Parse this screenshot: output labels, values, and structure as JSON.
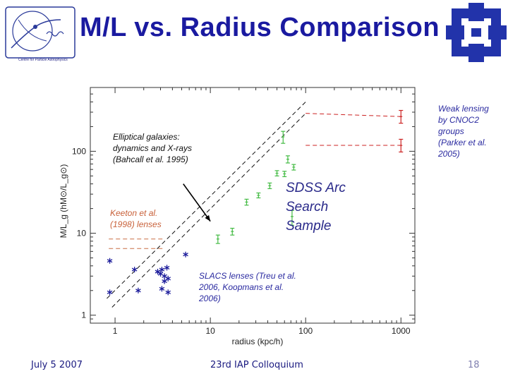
{
  "slide": {
    "title": "M/L vs. Radius Comparison",
    "footer_date": "July 5 2007",
    "footer_conference": "23rd IAP Colloquium",
    "footer_page": "18",
    "logo_left_caption": "Centre for Particle Astrophysics"
  },
  "chart_data": {
    "type": "scatter",
    "xlabel": "radius (kpc/h)",
    "ylabel": "M/L_g (hM⊙/L_g⊙)",
    "xscale": "log",
    "yscale": "log",
    "xlim": [
      0.55,
      1400
    ],
    "ylim": [
      0.8,
      600
    ],
    "xticks": [
      1,
      10,
      100,
      1000
    ],
    "xtick_labels": [
      "1",
      "10",
      "100",
      "1000"
    ],
    "yticks": [
      1,
      10,
      100
    ],
    "ytick_labels": [
      "1",
      "10",
      "100"
    ],
    "series": [
      {
        "name": "SLACS lenses (Treu et al. 2006, Koopmans et al. 2006)",
        "marker": "asterisk",
        "color": "#1a1a9a",
        "points": [
          [
            0.88,
            4.6
          ],
          [
            0.88,
            1.9
          ],
          [
            1.6,
            3.6
          ],
          [
            1.75,
            2.0
          ],
          [
            2.8,
            3.4
          ],
          [
            3.0,
            3.2
          ],
          [
            3.1,
            3.6
          ],
          [
            3.3,
            3.0
          ],
          [
            3.5,
            3.8
          ],
          [
            3.3,
            2.6
          ],
          [
            3.6,
            2.8
          ],
          [
            3.1,
            2.1
          ],
          [
            3.6,
            1.9
          ],
          [
            5.5,
            5.5
          ]
        ]
      },
      {
        "name": "SDSS Arc Search Sample",
        "marker": "errorbar",
        "color": "#44bb44",
        "points": [
          [
            12,
            8.5,
            7.5,
            9.5
          ],
          [
            17,
            10.5,
            9.5,
            11.5
          ],
          [
            24,
            24,
            22,
            26
          ],
          [
            32,
            29,
            27,
            31
          ],
          [
            42,
            38,
            35,
            41
          ],
          [
            50,
            54,
            50,
            58
          ],
          [
            60,
            53,
            49,
            57
          ],
          [
            65,
            80,
            72,
            88
          ],
          [
            72,
            16,
            12.5,
            19
          ],
          [
            75,
            64,
            59,
            69
          ],
          [
            58,
            150,
            125,
            175
          ]
        ]
      },
      {
        "name": "Weak lensing by CNOC2 groups (Parker et al. 2005)",
        "marker": "errorbar",
        "color": "#cc2222",
        "points": [
          [
            1000,
            265,
            220,
            315
          ],
          [
            1000,
            118,
            98,
            140
          ]
        ]
      }
    ],
    "lines": [
      {
        "style": "dashed",
        "color": "#111111",
        "points": [
          [
            0.93,
            1.25
          ],
          [
            100,
            290
          ]
        ]
      },
      {
        "style": "dashed",
        "color": "#111111",
        "points": [
          [
            0.82,
            1.6
          ],
          [
            100,
            400
          ]
        ]
      },
      {
        "style": "dashed",
        "color": "#cc2222",
        "points": [
          [
            100,
            290
          ],
          [
            1000,
            265
          ]
        ]
      },
      {
        "style": "dashed",
        "color": "#cc2222",
        "points": [
          [
            100,
            118
          ],
          [
            1000,
            118
          ]
        ]
      },
      {
        "style": "dashed",
        "color": "#c86e44",
        "points": [
          [
            0.86,
            8.5
          ],
          [
            3.3,
            8.5
          ]
        ]
      },
      {
        "style": "dashed",
        "color": "#c86e44",
        "points": [
          [
            0.86,
            6.5
          ],
          [
            3.3,
            6.5
          ]
        ]
      }
    ],
    "annotations": [
      {
        "text": "Elliptical galaxies: dynamics and X-rays (Bahcall et al. 1995)",
        "color": "#111111"
      },
      {
        "text": "Keeton et al. (1998) lenses",
        "color": "#c8613a"
      },
      {
        "text": "SDSS Arc Search Sample",
        "color": "#2a2a8a"
      },
      {
        "text": "SLACS lenses (Treu et al. 2006, Koopmans et al. 2006)",
        "color": "#2a2aa0"
      },
      {
        "text": "Weak lensing by CNOC2 groups (Parker et al. 2005)",
        "color": "#2a2aa0"
      }
    ],
    "arrow": {
      "from": [
        5.2,
        40
      ],
      "to": [
        10,
        14
      ]
    }
  }
}
